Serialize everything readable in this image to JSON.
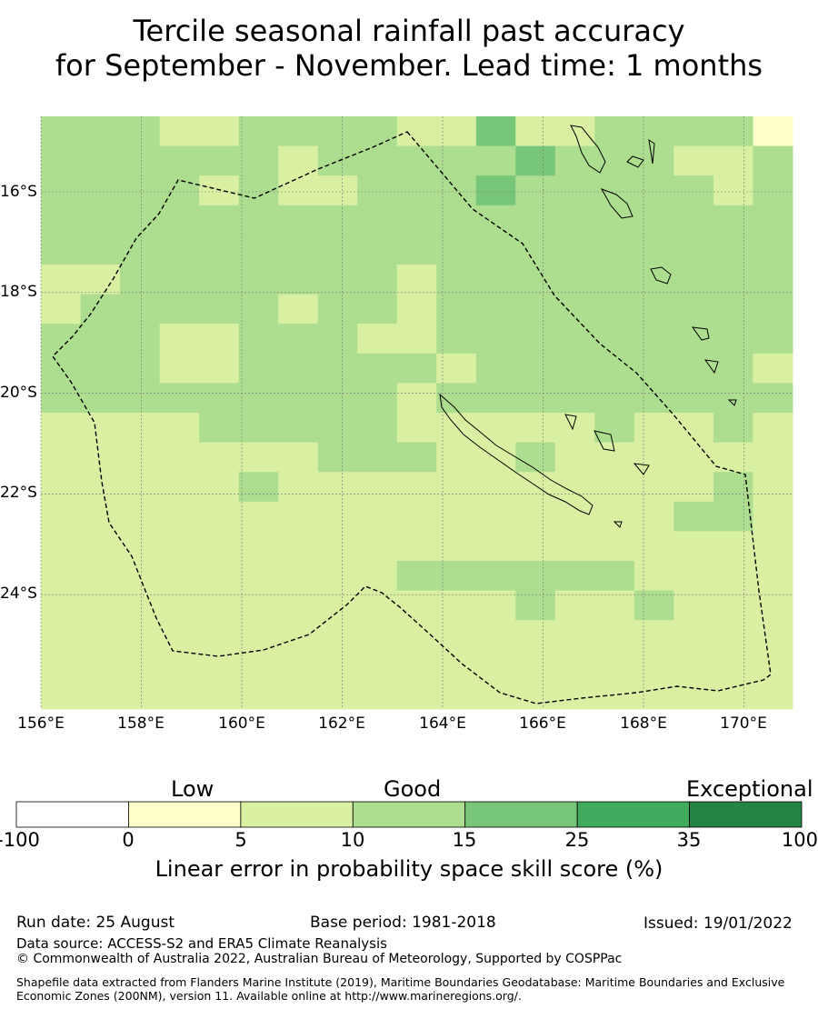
{
  "title": {
    "line1": "Tercile seasonal rainfall past accuracy",
    "line2": "for September - November. Lead time: 1 months"
  },
  "map": {
    "lon_range": [
      156,
      171
    ],
    "lat_range": [
      -14.7,
      -26.5
    ],
    "lon_ticks": [
      "156°E",
      "158°E",
      "160°E",
      "162°E",
      "164°E",
      "166°E",
      "168°E",
      "170°E"
    ],
    "lat_ticks": [
      "16°S",
      "18°S",
      "20°S",
      "22°S",
      "24°S"
    ],
    "grid_lines": true,
    "eez_boundary": "dashed black",
    "cell_size_deg": 0.833,
    "grid_categories": [
      "2221122221131122220",
      "2222221222223222112",
      "2222121122232222212",
      "2222222222222222222",
      "2222222222222222222",
      "1122222221222222222",
      "1222221221222222222",
      "2221122211222222222",
      "2221122222122222221",
      "2222222221222222222",
      "1111222221111121121",
      "1111111222112111111",
      "1111121111111111121",
      "1111111111111111221",
      "1111111111111111111",
      "1111111112222221111",
      "1111111111112112111",
      "1111111111111111111",
      "1111111111111111111",
      "1111111111111111111"
    ]
  },
  "legend": {
    "categories": [
      "Low",
      "Good",
      "Exceptional"
    ],
    "ticks": [
      "-100",
      "0",
      "5",
      "10",
      "15",
      "25",
      "35",
      "100"
    ],
    "colors": [
      "#ffffff",
      "#ffffcc",
      "#d9f0a3",
      "#addd8e",
      "#78c679",
      "#41ab5d",
      "#238443"
    ],
    "title": "Linear error in probability space skill score (%)"
  },
  "footer": {
    "run_date": "Run date: 25 August",
    "base_period": "Base period: 1981-2018",
    "issued": "Issued: 19/01/2022",
    "data_source": "Data source: ACCESS-S2 and ERA5 Climate Reanalysis",
    "copyright": "© Commonwealth of Australia 2022, Australian Bureau of Meteorology, Supported by COSPPac",
    "shapefile": "Shapefile data extracted from Flanders Marine Institute (2019), Maritime Boundaries Geodatabase: Maritime Boundaries and Exclusive Economic Zones (200NM), version 11. Available online at http://www.marineregions.org/."
  }
}
